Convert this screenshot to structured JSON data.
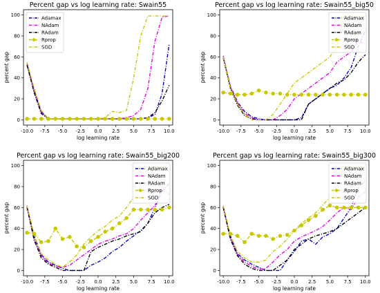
{
  "chart_data": [
    {
      "type": "line",
      "title": "Percent gap vs log learning rate: Swain55",
      "xlabel": "log learning rate",
      "ylabel": "percent gap",
      "xlim": [
        -10.5,
        10.5
      ],
      "ylim": [
        -5,
        105
      ],
      "xticks": [
        -10.0,
        -7.5,
        -5.0,
        -2.5,
        0.0,
        2.5,
        5.0,
        7.5,
        10.0
      ],
      "xtick_labels": [
        "-10.0",
        "-7.5",
        "-5.0",
        "-2.5",
        "0.0",
        "2.5",
        "5.0",
        "7.5",
        "10.0"
      ],
      "yticks": [
        0,
        20,
        40,
        60,
        80,
        100
      ],
      "ytick_labels": [
        "0",
        "20",
        "40",
        "60",
        "80",
        "100"
      ],
      "legend": "top-left",
      "grid": false,
      "x": [
        -10,
        -9,
        -8,
        -7,
        -6,
        -5,
        -4,
        -3,
        -2,
        -1,
        0,
        1,
        2,
        3,
        4,
        5,
        6,
        7,
        8,
        9,
        10
      ],
      "series": [
        {
          "name": "Adamax",
          "color": "#0000cc",
          "style": "dashdot",
          "marker": "none",
          "values": [
            53,
            28,
            8,
            1,
            1,
            1,
            1,
            1,
            1,
            1,
            1,
            1,
            1,
            1,
            1,
            1,
            1,
            2,
            5,
            25,
            72
          ]
        },
        {
          "name": "NAdam",
          "color": "#e600e6",
          "style": "dashdot",
          "marker": "none",
          "values": [
            54,
            27,
            7,
            1,
            1,
            1,
            1,
            1,
            1,
            1,
            1,
            1,
            1,
            1,
            2,
            4,
            10,
            30,
            75,
            98,
            99
          ]
        },
        {
          "name": "RAdam",
          "color": "#000000",
          "style": "dashdot",
          "marker": "none",
          "values": [
            52,
            26,
            6,
            1,
            1,
            1,
            1,
            1,
            1,
            1,
            1,
            1,
            1,
            1,
            1,
            1,
            1,
            2,
            7,
            18,
            33
          ]
        },
        {
          "name": "Rprop",
          "color": "#c8c800",
          "style": "dashdot",
          "marker": "circle",
          "values": [
            1,
            1,
            1,
            1,
            1,
            1,
            1,
            1,
            1,
            1,
            1,
            1,
            1,
            1,
            1,
            1,
            1,
            1,
            1,
            1,
            1
          ]
        },
        {
          "name": "SGD",
          "color": "#c8c800",
          "style": "dashdot",
          "marker": "none",
          "values": [
            55,
            30,
            9,
            1,
            1,
            1,
            1,
            1,
            1,
            1,
            1,
            2,
            8,
            7,
            9,
            40,
            80,
            99,
            99,
            99,
            99
          ]
        }
      ]
    },
    {
      "type": "line",
      "title": "Percent gap vs log learning rate: Swain55_big50",
      "xlabel": "log learning rate",
      "ylabel": "percent gap",
      "xlim": [
        -10.5,
        10.5
      ],
      "ylim": [
        -5,
        105
      ],
      "xticks": [
        -10.0,
        -7.5,
        -5.0,
        -2.5,
        0.0,
        2.5,
        5.0,
        7.5,
        10.0
      ],
      "xtick_labels": [
        "-10.0",
        "-7.5",
        "-5.0",
        "-2.5",
        "0.0",
        "2.5",
        "5.0",
        "7.5",
        "10.0"
      ],
      "yticks": [
        0,
        20,
        40,
        60,
        80,
        100
      ],
      "ytick_labels": [
        "0",
        "20",
        "40",
        "60",
        "80",
        "100"
      ],
      "legend": "top-right",
      "grid": false,
      "x": [
        -10,
        -9,
        -8,
        -7,
        -6,
        -5,
        -4,
        -3,
        -2,
        -1,
        0,
        1,
        2,
        3,
        4,
        5,
        6,
        7,
        8,
        9,
        10
      ],
      "series": [
        {
          "name": "Adamax",
          "color": "#0000cc",
          "style": "dashdot",
          "marker": "none",
          "values": [
            60,
            32,
            17,
            8,
            3,
            1,
            0,
            0,
            0,
            0,
            0,
            2,
            15,
            20,
            25,
            30,
            33,
            40,
            50,
            70,
            85
          ]
        },
        {
          "name": "NAdam",
          "color": "#e600e6",
          "style": "dashdot",
          "marker": "none",
          "values": [
            61,
            31,
            16,
            6,
            2,
            0,
            0,
            0,
            4,
            10,
            20,
            25,
            30,
            35,
            40,
            45,
            55,
            60,
            65,
            75,
            72
          ]
        },
        {
          "name": "RAdam",
          "color": "#000000",
          "style": "dashdot",
          "marker": "none",
          "values": [
            59,
            30,
            14,
            4,
            1,
            0,
            0,
            0,
            0,
            0,
            0,
            0,
            15,
            20,
            25,
            30,
            35,
            38,
            45,
            55,
            62
          ]
        },
        {
          "name": "Rprop",
          "color": "#c8c800",
          "style": "dashdot",
          "marker": "circle",
          "values": [
            26,
            25,
            24,
            24,
            25,
            28,
            26,
            25,
            25,
            24,
            24,
            24,
            24,
            24,
            24,
            24,
            24,
            24,
            24,
            24,
            24
          ]
        },
        {
          "name": "SGD",
          "color": "#c8c800",
          "style": "dashdot",
          "marker": "none",
          "values": [
            60,
            30,
            15,
            5,
            0,
            0,
            0,
            5,
            15,
            25,
            35,
            40,
            45,
            50,
            55,
            60,
            70,
            99,
            99,
            99,
            99
          ]
        }
      ]
    },
    {
      "type": "line",
      "title": "Percent gap vs log learning rate: Swain55_big200",
      "xlabel": "log learning rate",
      "ylabel": "percent gap",
      "xlim": [
        -10.5,
        10.5
      ],
      "ylim": [
        -5,
        105
      ],
      "xticks": [
        -10.0,
        -7.5,
        -5.0,
        -2.5,
        0.0,
        2.5,
        5.0,
        7.5,
        10.0
      ],
      "xtick_labels": [
        "-10.0",
        "-7.5",
        "-5.0",
        "-2.5",
        "0.0",
        "2.5",
        "5.0",
        "7.5",
        "10.0"
      ],
      "yticks": [
        0,
        20,
        40,
        60,
        80,
        100
      ],
      "ytick_labels": [
        "0",
        "20",
        "40",
        "60",
        "80",
        "100"
      ],
      "legend": "top-right",
      "grid": false,
      "x": [
        -10,
        -9,
        -8,
        -7,
        -6,
        -5,
        -4,
        -3,
        -2,
        -1,
        0,
        1,
        2,
        3,
        4,
        5,
        6,
        7,
        8,
        9,
        10
      ],
      "series": [
        {
          "name": "Adamax",
          "color": "#0000cc",
          "style": "dashdot",
          "marker": "none",
          "values": [
            60,
            33,
            15,
            8,
            5,
            2,
            0,
            0,
            0,
            5,
            8,
            12,
            18,
            22,
            28,
            33,
            38,
            45,
            60,
            75,
            83
          ]
        },
        {
          "name": "NAdam",
          "color": "#e600e6",
          "style": "dashdot",
          "marker": "none",
          "values": [
            61,
            30,
            14,
            7,
            4,
            3,
            5,
            10,
            15,
            20,
            25,
            28,
            30,
            33,
            35,
            40,
            48,
            55,
            62,
            80,
            72
          ]
        },
        {
          "name": "RAdam",
          "color": "#000000",
          "style": "dashdot",
          "marker": "none",
          "values": [
            60,
            29,
            12,
            6,
            3,
            0,
            0,
            0,
            0,
            18,
            22,
            25,
            28,
            30,
            33,
            35,
            37,
            45,
            55,
            60,
            63
          ]
        },
        {
          "name": "Rprop",
          "color": "#c8c800",
          "style": "dashdot",
          "marker": "circle",
          "values": [
            36,
            35,
            27,
            28,
            40,
            30,
            32,
            23,
            22,
            28,
            32,
            37,
            40,
            45,
            50,
            58,
            58,
            58,
            58,
            58,
            60
          ]
        },
        {
          "name": "SGD",
          "color": "#c8c800",
          "style": "dashdot",
          "marker": "none",
          "values": [
            62,
            34,
            16,
            10,
            6,
            3,
            8,
            15,
            25,
            32,
            38,
            42,
            48,
            52,
            60,
            70,
            80,
            99,
            99,
            99,
            99
          ]
        }
      ]
    },
    {
      "type": "line",
      "title": "Percent gap vs log learning rate: Swain55_big300",
      "xlabel": "log learning rate",
      "ylabel": "percent gap",
      "xlim": [
        -10.5,
        10.5
      ],
      "ylim": [
        -5,
        105
      ],
      "xticks": [
        -10.0,
        -7.5,
        -5.0,
        -2.5,
        0.0,
        2.5,
        5.0,
        7.5,
        10.0
      ],
      "xtick_labels": [
        "-10.0",
        "-7.5",
        "-5.0",
        "-2.5",
        "0.0",
        "2.5",
        "5.0",
        "7.5",
        "10.0"
      ],
      "yticks": [
        0,
        20,
        40,
        60,
        80,
        100
      ],
      "ytick_labels": [
        "0",
        "20",
        "40",
        "60",
        "80",
        "100"
      ],
      "legend": "top-right",
      "grid": false,
      "x": [
        -10,
        -9,
        -8,
        -7,
        -6,
        -5,
        -4,
        -3,
        -2,
        -1,
        0,
        1,
        2,
        3,
        4,
        5,
        6,
        7,
        8,
        9,
        10
      ],
      "series": [
        {
          "name": "Adamax",
          "color": "#0000cc",
          "style": "dashdot",
          "marker": "none",
          "values": [
            60,
            33,
            16,
            10,
            6,
            3,
            0,
            0,
            0,
            10,
            18,
            28,
            30,
            25,
            32,
            35,
            40,
            50,
            60,
            80,
            85
          ]
        },
        {
          "name": "NAdam",
          "color": "#e600e6",
          "style": "dashdot",
          "marker": "none",
          "values": [
            61,
            31,
            15,
            8,
            4,
            1,
            2,
            8,
            15,
            20,
            28,
            32,
            35,
            38,
            42,
            48,
            55,
            60,
            58,
            70,
            75
          ]
        },
        {
          "name": "RAdam",
          "color": "#000000",
          "style": "dashdot",
          "marker": "none",
          "values": [
            60,
            30,
            14,
            6,
            2,
            0,
            0,
            0,
            5,
            10,
            20,
            25,
            30,
            33,
            35,
            37,
            40,
            45,
            50,
            55,
            60
          ]
        },
        {
          "name": "Rprop",
          "color": "#c8c800",
          "style": "dashdot",
          "marker": "circle",
          "values": [
            35,
            35,
            33,
            27,
            35,
            33,
            33,
            30,
            33,
            34,
            38,
            43,
            48,
            52,
            58,
            62,
            60,
            60,
            60,
            60,
            60
          ]
        },
        {
          "name": "SGD",
          "color": "#c8c800",
          "style": "dashdot",
          "marker": "none",
          "values": [
            62,
            34,
            18,
            12,
            8,
            8,
            10,
            18,
            23,
            30,
            38,
            45,
            50,
            55,
            62,
            70,
            80,
            99,
            99,
            99,
            99
          ]
        }
      ]
    }
  ]
}
